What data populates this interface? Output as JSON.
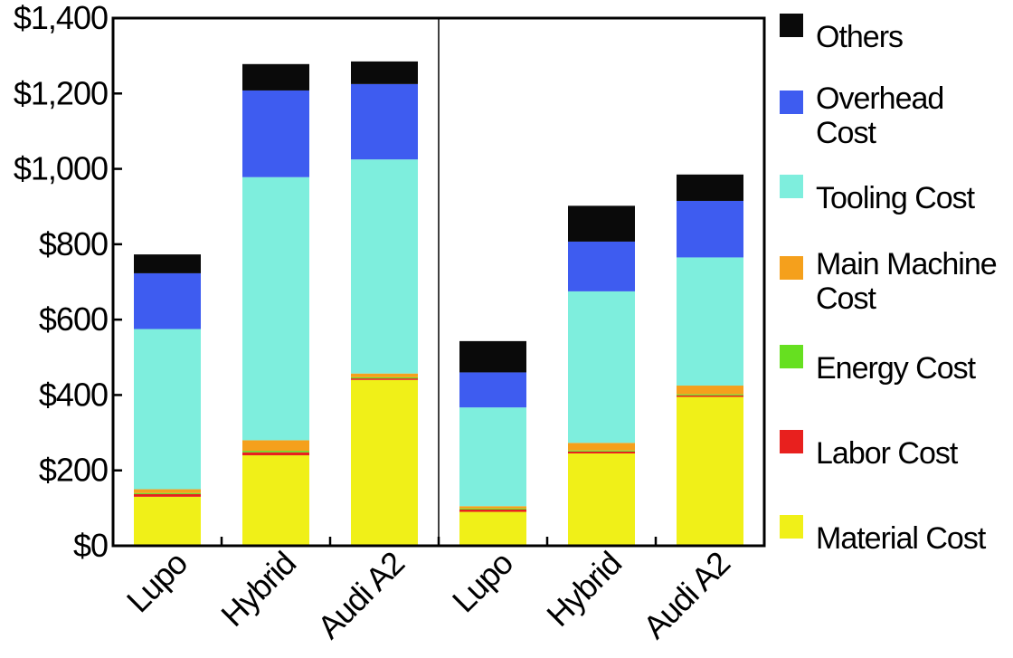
{
  "chart_data": {
    "type": "bar",
    "stacked": true,
    "categories": [
      "Lupo",
      "Hybrid",
      "Audi A2",
      "Lupo",
      "Hybrid",
      "Audi A2"
    ],
    "group_divider_after_index": 2,
    "ylim": [
      0,
      1400
    ],
    "ytick_labels": [
      "$0",
      "$200",
      "$400",
      "$600",
      "$800",
      "$1,000",
      "$1,200",
      "$1,400"
    ],
    "ytick_values": [
      0,
      200,
      400,
      600,
      800,
      1000,
      1200,
      1400
    ],
    "legend_position": "right",
    "series": [
      {
        "name": "Material Cost",
        "color": "#f0f018",
        "values": [
          130,
          240,
          440,
          90,
          245,
          395
        ]
      },
      {
        "name": "Labor Cost",
        "color": "#e8201e",
        "values": [
          7,
          8,
          4,
          6,
          5,
          4
        ]
      },
      {
        "name": "Energy Cost",
        "color": "#66e020",
        "values": [
          3,
          4,
          3,
          3,
          3,
          3
        ]
      },
      {
        "name": "Main Machine Cost",
        "color": "#f5a01c",
        "values": [
          10,
          28,
          10,
          6,
          20,
          23
        ]
      },
      {
        "name": "Tooling Cost",
        "color": "#7eeedd",
        "values": [
          425,
          698,
          568,
          262,
          402,
          340
        ]
      },
      {
        "name": "Overhead Cost",
        "color": "#3e5cf0",
        "values": [
          148,
          230,
          200,
          93,
          132,
          150
        ]
      },
      {
        "name": "Others",
        "color": "#0a0a0a",
        "values": [
          50,
          70,
          60,
          83,
          95,
          70
        ]
      }
    ],
    "legend_lines": [
      [
        "Others"
      ],
      [
        "Overhead",
        "Cost"
      ],
      [
        "Tooling Cost"
      ],
      [
        "Main Machine",
        "Cost"
      ],
      [
        "Energy Cost"
      ],
      [
        "Labor Cost"
      ],
      [
        "Material Cost"
      ]
    ]
  }
}
